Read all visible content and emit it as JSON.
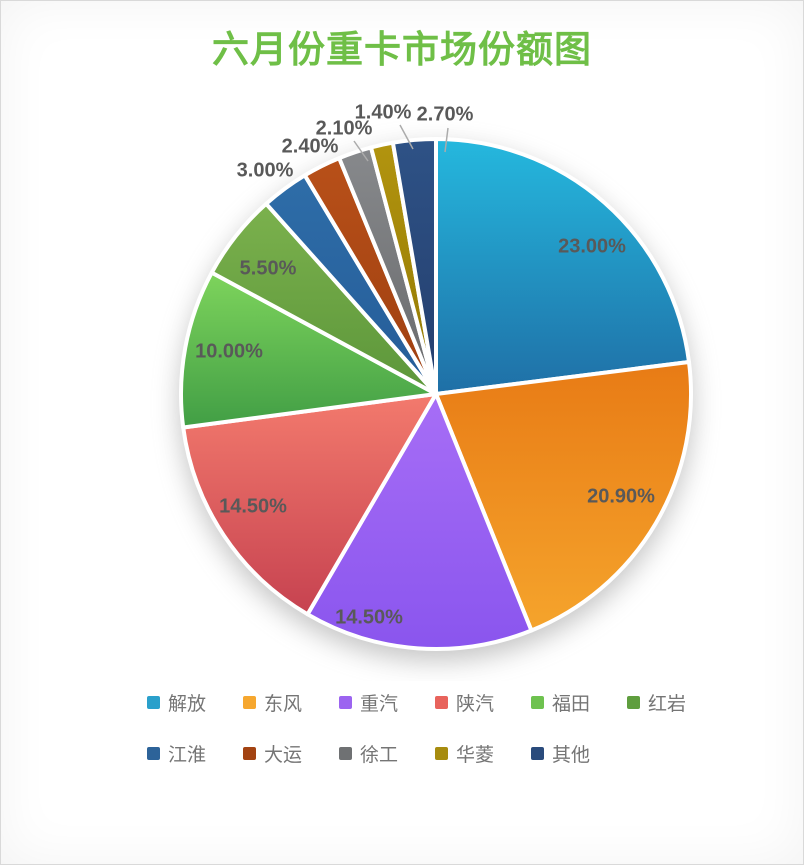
{
  "title": "六月份重卡市场份额图",
  "styles": {
    "title_color": "#6FBF47",
    "label_color": "#595959",
    "legend_text_color": "#757575",
    "background": "#FFFFFF",
    "slice_border_color": "#FFFFFF",
    "leader_line_color": "#ABABAB"
  },
  "chart_data": {
    "type": "pie",
    "title": "六月份重卡市场份额图",
    "unit": "percent",
    "direction": "clockwise",
    "start_angle": "12-oclock",
    "legend_position": "bottom",
    "total": 100,
    "series": [
      {
        "name": "解放",
        "value": 23.0,
        "label": "23.00%",
        "gradient_top": "#25B8DE",
        "gradient_bottom": "#1F6FA6",
        "legend_color": "#2AA0CB"
      },
      {
        "name": "东风",
        "value": 20.9,
        "label": "20.90%",
        "gradient_top": "#E87B15",
        "gradient_bottom": "#F5A42C",
        "legend_color": "#F6A72F"
      },
      {
        "name": "重汽",
        "value": 14.5,
        "label": "14.50%",
        "gradient_top": "#A76EF6",
        "gradient_bottom": "#8A55EE",
        "legend_color": "#9C64F0"
      },
      {
        "name": "陕汽",
        "value": 14.5,
        "label": "14.50%",
        "gradient_top": "#F37A6D",
        "gradient_bottom": "#C64250",
        "legend_color": "#E8635C"
      },
      {
        "name": "福田",
        "value": 10.0,
        "label": "10.00%",
        "gradient_top": "#7ED45C",
        "gradient_bottom": "#419E45",
        "legend_color": "#6EC24F"
      },
      {
        "name": "红岩",
        "value": 5.5,
        "label": "5.50%",
        "gradient_top": "#7BB14D",
        "gradient_bottom": "#5C963A",
        "legend_color": "#5F9E3E"
      },
      {
        "name": "江淮",
        "value": 3.0,
        "label": "3.00%",
        "gradient_top": "#2E6DA8",
        "gradient_bottom": "#255C98",
        "legend_color": "#2D6399"
      },
      {
        "name": "大运",
        "value": 2.4,
        "label": "2.40%",
        "gradient_top": "#B85019",
        "gradient_bottom": "#9E3F10",
        "legend_color": "#A34312"
      },
      {
        "name": "徐工",
        "value": 2.1,
        "label": "2.10%",
        "gradient_top": "#87898C",
        "gradient_bottom": "#68696B",
        "legend_color": "#6F7173"
      },
      {
        "name": "华菱",
        "value": 1.4,
        "label": "1.40%",
        "gradient_top": "#B2940F",
        "gradient_bottom": "#927803",
        "legend_color": "#A78C0F"
      },
      {
        "name": "其他",
        "value": 2.7,
        "label": "2.70%",
        "gradient_top": "#2E5286",
        "gradient_bottom": "#243E6D",
        "legend_color": "#2A4B7C"
      }
    ]
  }
}
